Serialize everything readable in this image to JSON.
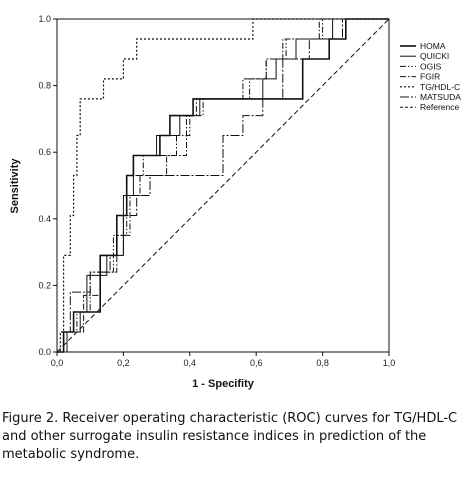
{
  "caption": "Figure 2. Receiver operating characteristic (ROC) curves for TG/HDL-C and other surrogate insulin resistance indices in prediction of the metabolic syndrome.",
  "chart_data": {
    "type": "line",
    "title": "",
    "xlabel": "1 - Specifity",
    "ylabel": "Sensitivity",
    "xlim": [
      0,
      1
    ],
    "ylim": [
      0,
      1
    ],
    "xticks": [
      "0,0",
      "0,2",
      "0,4",
      "0,6",
      "0,8",
      "1,0"
    ],
    "yticks": [
      "0.0",
      "0.2",
      "0.4",
      "0.6",
      "0.8",
      "1.0"
    ],
    "grid": false,
    "legend_position": "right",
    "series": [
      {
        "name": "HOMA",
        "dash": "",
        "width": 1.6,
        "points": [
          [
            0,
            0
          ],
          [
            0.02,
            0
          ],
          [
            0.02,
            0.06
          ],
          [
            0.05,
            0.06
          ],
          [
            0.05,
            0.12
          ],
          [
            0.13,
            0.12
          ],
          [
            0.13,
            0.29
          ],
          [
            0.18,
            0.29
          ],
          [
            0.18,
            0.41
          ],
          [
            0.21,
            0.41
          ],
          [
            0.21,
            0.53
          ],
          [
            0.23,
            0.53
          ],
          [
            0.23,
            0.59
          ],
          [
            0.31,
            0.59
          ],
          [
            0.31,
            0.65
          ],
          [
            0.34,
            0.65
          ],
          [
            0.34,
            0.71
          ],
          [
            0.41,
            0.71
          ],
          [
            0.41,
            0.76
          ],
          [
            0.74,
            0.76
          ],
          [
            0.74,
            0.88
          ],
          [
            0.82,
            0.88
          ],
          [
            0.82,
            0.94
          ],
          [
            0.87,
            0.94
          ],
          [
            0.87,
            1.0
          ],
          [
            1.0,
            1.0
          ]
        ]
      },
      {
        "name": "QUICKI",
        "dash": "",
        "width": 1.0,
        "points": [
          [
            0,
            0
          ],
          [
            0.03,
            0
          ],
          [
            0.03,
            0.06
          ],
          [
            0.07,
            0.06
          ],
          [
            0.07,
            0.12
          ],
          [
            0.09,
            0.12
          ],
          [
            0.09,
            0.23
          ],
          [
            0.15,
            0.23
          ],
          [
            0.15,
            0.29
          ],
          [
            0.2,
            0.29
          ],
          [
            0.2,
            0.47
          ],
          [
            0.23,
            0.47
          ],
          [
            0.23,
            0.59
          ],
          [
            0.3,
            0.59
          ],
          [
            0.3,
            0.65
          ],
          [
            0.37,
            0.65
          ],
          [
            0.37,
            0.71
          ],
          [
            0.43,
            0.71
          ],
          [
            0.43,
            0.76
          ],
          [
            0.62,
            0.76
          ],
          [
            0.62,
            0.82
          ],
          [
            0.66,
            0.82
          ],
          [
            0.66,
            0.88
          ],
          [
            0.72,
            0.88
          ],
          [
            0.72,
            0.94
          ],
          [
            0.83,
            0.94
          ],
          [
            0.83,
            1.0
          ],
          [
            1.0,
            1.0
          ]
        ]
      },
      {
        "name": "OGIS",
        "dash": "6,2,1.5,2,1.5,2",
        "width": 1.0,
        "points": [
          [
            0,
            0
          ],
          [
            0.02,
            0
          ],
          [
            0.02,
            0.06
          ],
          [
            0.06,
            0.06
          ],
          [
            0.06,
            0.12
          ],
          [
            0.1,
            0.12
          ],
          [
            0.1,
            0.24
          ],
          [
            0.17,
            0.24
          ],
          [
            0.17,
            0.35
          ],
          [
            0.21,
            0.35
          ],
          [
            0.21,
            0.53
          ],
          [
            0.26,
            0.53
          ],
          [
            0.26,
            0.59
          ],
          [
            0.36,
            0.59
          ],
          [
            0.36,
            0.65
          ],
          [
            0.4,
            0.65
          ],
          [
            0.4,
            0.71
          ],
          [
            0.44,
            0.71
          ],
          [
            0.44,
            0.76
          ],
          [
            0.58,
            0.76
          ],
          [
            0.58,
            0.82
          ],
          [
            0.63,
            0.82
          ],
          [
            0.63,
            0.88
          ],
          [
            0.69,
            0.88
          ],
          [
            0.69,
            0.94
          ],
          [
            0.8,
            0.94
          ],
          [
            0.8,
            1.0
          ],
          [
            1.0,
            1.0
          ]
        ]
      },
      {
        "name": "FGIR",
        "dash": "6,2,1.5,2",
        "width": 1.0,
        "points": [
          [
            0,
            0
          ],
          [
            0.03,
            0
          ],
          [
            0.03,
            0.06
          ],
          [
            0.08,
            0.06
          ],
          [
            0.08,
            0.17
          ],
          [
            0.13,
            0.17
          ],
          [
            0.13,
            0.24
          ],
          [
            0.18,
            0.24
          ],
          [
            0.18,
            0.35
          ],
          [
            0.22,
            0.35
          ],
          [
            0.22,
            0.47
          ],
          [
            0.25,
            0.47
          ],
          [
            0.25,
            0.53
          ],
          [
            0.33,
            0.53
          ],
          [
            0.33,
            0.59
          ],
          [
            0.39,
            0.59
          ],
          [
            0.39,
            0.71
          ],
          [
            0.42,
            0.71
          ],
          [
            0.42,
            0.76
          ],
          [
            0.56,
            0.76
          ],
          [
            0.56,
            0.82
          ],
          [
            0.63,
            0.82
          ],
          [
            0.63,
            0.88
          ],
          [
            0.68,
            0.88
          ],
          [
            0.68,
            0.94
          ],
          [
            0.79,
            0.94
          ],
          [
            0.79,
            1.0
          ],
          [
            1.0,
            1.0
          ]
        ]
      },
      {
        "name": "TG/HDL-C",
        "dash": "2,2",
        "width": 1.2,
        "points": [
          [
            0,
            0
          ],
          [
            0.01,
            0
          ],
          [
            0.01,
            0.06
          ],
          [
            0.02,
            0.06
          ],
          [
            0.02,
            0.29
          ],
          [
            0.04,
            0.29
          ],
          [
            0.04,
            0.41
          ],
          [
            0.05,
            0.41
          ],
          [
            0.05,
            0.53
          ],
          [
            0.06,
            0.53
          ],
          [
            0.06,
            0.65
          ],
          [
            0.07,
            0.65
          ],
          [
            0.07,
            0.76
          ],
          [
            0.14,
            0.76
          ],
          [
            0.14,
            0.82
          ],
          [
            0.2,
            0.82
          ],
          [
            0.2,
            0.88
          ],
          [
            0.24,
            0.88
          ],
          [
            0.24,
            0.94
          ],
          [
            0.32,
            0.94
          ],
          [
            0.32,
            0.94
          ],
          [
            0.59,
            0.94
          ],
          [
            0.59,
            1.0
          ],
          [
            1.0,
            1.0
          ]
        ]
      },
      {
        "name": "MATSUDA",
        "dash": "9,2,2,2",
        "width": 1.0,
        "points": [
          [
            0,
            0
          ],
          [
            0.02,
            0
          ],
          [
            0.02,
            0.06
          ],
          [
            0.04,
            0.06
          ],
          [
            0.04,
            0.18
          ],
          [
            0.1,
            0.18
          ],
          [
            0.1,
            0.24
          ],
          [
            0.16,
            0.24
          ],
          [
            0.16,
            0.29
          ],
          [
            0.2,
            0.29
          ],
          [
            0.2,
            0.41
          ],
          [
            0.24,
            0.41
          ],
          [
            0.24,
            0.47
          ],
          [
            0.28,
            0.47
          ],
          [
            0.28,
            0.53
          ],
          [
            0.5,
            0.53
          ],
          [
            0.5,
            0.65
          ],
          [
            0.56,
            0.65
          ],
          [
            0.56,
            0.71
          ],
          [
            0.62,
            0.71
          ],
          [
            0.62,
            0.76
          ],
          [
            0.68,
            0.76
          ],
          [
            0.68,
            0.88
          ],
          [
            0.76,
            0.88
          ],
          [
            0.76,
            0.94
          ],
          [
            0.86,
            0.94
          ],
          [
            0.86,
            1.0
          ],
          [
            1.0,
            1.0
          ]
        ]
      },
      {
        "name": "Reference",
        "dash": "5,3",
        "width": 1.0,
        "points": [
          [
            0,
            0
          ],
          [
            1,
            1
          ]
        ]
      }
    ]
  }
}
